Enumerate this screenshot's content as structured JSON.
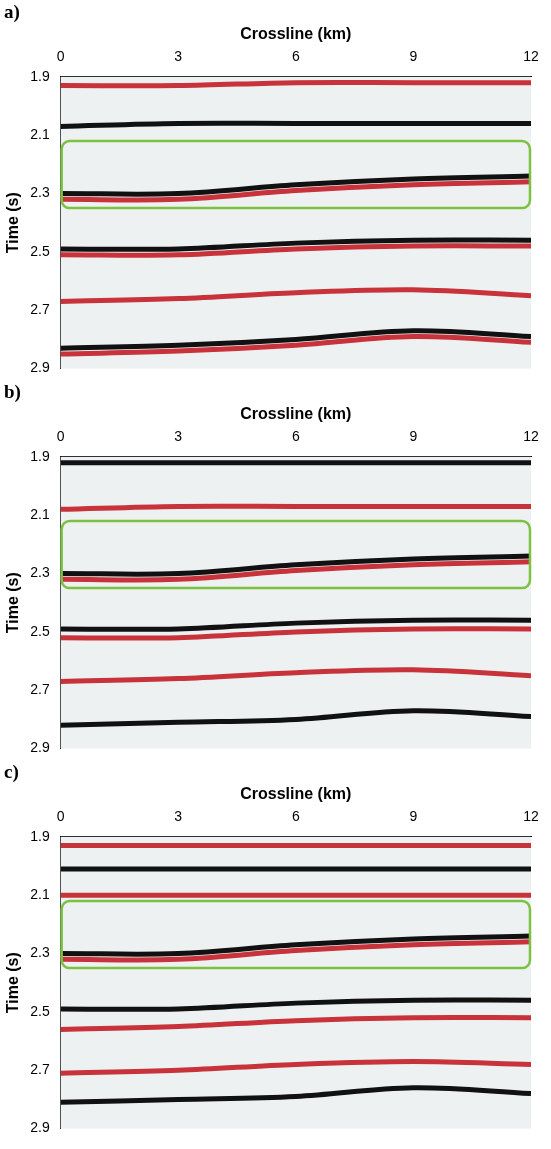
{
  "chart_data": [
    {
      "type": "line",
      "title": "a)",
      "x_label": "Crossline (km)",
      "y_label": "Time (s)",
      "xlim": [
        0,
        12
      ],
      "xticks": [
        0,
        3,
        6,
        9,
        12
      ],
      "ylim": [
        2.9,
        1.9
      ],
      "yticks": [
        1.9,
        2.1,
        2.3,
        2.5,
        2.7,
        2.9
      ],
      "grid": false,
      "x": [
        0,
        3,
        6,
        9,
        12
      ],
      "series": [
        {
          "color": "#c8323a",
          "values": [
            1.93,
            1.93,
            1.92,
            1.92,
            1.92
          ]
        },
        {
          "color": "#111111",
          "values": [
            2.07,
            2.06,
            2.06,
            2.06,
            2.06
          ]
        },
        {
          "color": "#111111",
          "values": [
            2.3,
            2.3,
            2.27,
            2.25,
            2.24
          ]
        },
        {
          "color": "#c8323a",
          "values": [
            2.32,
            2.32,
            2.29,
            2.27,
            2.26
          ]
        },
        {
          "color": "#111111",
          "values": [
            2.49,
            2.49,
            2.47,
            2.46,
            2.46
          ]
        },
        {
          "color": "#c8323a",
          "values": [
            2.51,
            2.51,
            2.49,
            2.48,
            2.48
          ]
        },
        {
          "color": "#c8323a",
          "values": [
            2.67,
            2.66,
            2.64,
            2.63,
            2.65
          ]
        },
        {
          "color": "#111111",
          "values": [
            2.83,
            2.82,
            2.8,
            2.77,
            2.79
          ]
        },
        {
          "color": "#c8323a",
          "values": [
            2.85,
            2.84,
            2.82,
            2.79,
            2.81
          ]
        }
      ],
      "box": {
        "x": [
          0,
          12
        ],
        "y": [
          2.12,
          2.35
        ],
        "color": "#7cc242"
      }
    },
    {
      "type": "line",
      "title": "b)",
      "x_label": "Crossline (km)",
      "y_label": "Time (s)",
      "xlim": [
        0,
        12
      ],
      "xticks": [
        0,
        3,
        6,
        9,
        12
      ],
      "ylim": [
        2.9,
        1.9
      ],
      "yticks": [
        1.9,
        2.1,
        2.3,
        2.5,
        2.7,
        2.9
      ],
      "grid": false,
      "x": [
        0,
        3,
        6,
        9,
        12
      ],
      "series": [
        {
          "color": "#111111",
          "values": [
            1.92,
            1.92,
            1.92,
            1.92,
            1.92
          ]
        },
        {
          "color": "#c8323a",
          "values": [
            2.08,
            2.07,
            2.07,
            2.07,
            2.07
          ]
        },
        {
          "color": "#111111",
          "values": [
            2.3,
            2.3,
            2.27,
            2.25,
            2.24
          ]
        },
        {
          "color": "#c8323a",
          "values": [
            2.32,
            2.32,
            2.29,
            2.27,
            2.26
          ]
        },
        {
          "color": "#111111",
          "values": [
            2.49,
            2.49,
            2.47,
            2.46,
            2.46
          ]
        },
        {
          "color": "#c8323a",
          "values": [
            2.52,
            2.52,
            2.5,
            2.49,
            2.49
          ]
        },
        {
          "color": "#c8323a",
          "values": [
            2.67,
            2.66,
            2.64,
            2.63,
            2.65
          ]
        },
        {
          "color": "#111111",
          "values": [
            2.82,
            2.81,
            2.8,
            2.77,
            2.79
          ]
        }
      ],
      "box": {
        "x": [
          0,
          12
        ],
        "y": [
          2.12,
          2.35
        ],
        "color": "#7cc242"
      }
    },
    {
      "type": "line",
      "title": "c)",
      "x_label": "Crossline (km)",
      "y_label": "Time (s)",
      "xlim": [
        0,
        12
      ],
      "xticks": [
        0,
        3,
        6,
        9,
        12
      ],
      "ylim": [
        2.9,
        1.9
      ],
      "yticks": [
        1.9,
        2.1,
        2.3,
        2.5,
        2.7,
        2.9
      ],
      "grid": false,
      "x": [
        0,
        3,
        6,
        9,
        12
      ],
      "series": [
        {
          "color": "#c8323a",
          "values": [
            1.93,
            1.93,
            1.93,
            1.93,
            1.93
          ]
        },
        {
          "color": "#111111",
          "values": [
            2.01,
            2.01,
            2.01,
            2.01,
            2.01
          ]
        },
        {
          "color": "#c8323a",
          "values": [
            2.1,
            2.1,
            2.1,
            2.1,
            2.1
          ]
        },
        {
          "color": "#111111",
          "values": [
            2.3,
            2.3,
            2.27,
            2.25,
            2.24
          ]
        },
        {
          "color": "#c8323a",
          "values": [
            2.32,
            2.32,
            2.29,
            2.27,
            2.26
          ]
        },
        {
          "color": "#111111",
          "values": [
            2.49,
            2.49,
            2.47,
            2.46,
            2.46
          ]
        },
        {
          "color": "#c8323a",
          "values": [
            2.56,
            2.55,
            2.53,
            2.52,
            2.52
          ]
        },
        {
          "color": "#111111",
          "values": [
            2.81,
            2.8,
            2.79,
            2.76,
            2.78
          ]
        },
        {
          "color": "#c8323a",
          "values": [
            2.71,
            2.7,
            2.68,
            2.67,
            2.68
          ]
        }
      ],
      "box": {
        "x": [
          0,
          12
        ],
        "y": [
          2.12,
          2.35
        ],
        "color": "#7cc242"
      }
    }
  ]
}
